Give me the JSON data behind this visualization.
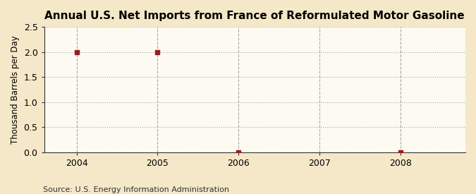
{
  "title": "Annual U.S. Net Imports from France of Reformulated Motor Gasoline",
  "ylabel": "Thousand Barrels per Day",
  "source": "Source: U.S. Energy Information Administration",
  "fig_bg_color": "#F5E8C8",
  "plot_bg_color": "#FDFAF2",
  "x_data": [
    2004,
    2005,
    2006,
    2008
  ],
  "y_data": [
    2.0,
    2.0,
    0.0,
    0.0
  ],
  "xlim": [
    2003.6,
    2008.8
  ],
  "ylim": [
    0.0,
    2.5
  ],
  "yticks": [
    0.0,
    0.5,
    1.0,
    1.5,
    2.0,
    2.5
  ],
  "xticks": [
    2004,
    2005,
    2006,
    2007,
    2008
  ],
  "marker_color": "#9B1B1B",
  "marker": "s",
  "marker_size": 4,
  "grid_color": "#AAAAAA",
  "grid_linestyle": ":",
  "vgrid_linestyle": "--",
  "title_fontsize": 11,
  "label_fontsize": 8.5,
  "tick_fontsize": 9,
  "source_fontsize": 8
}
